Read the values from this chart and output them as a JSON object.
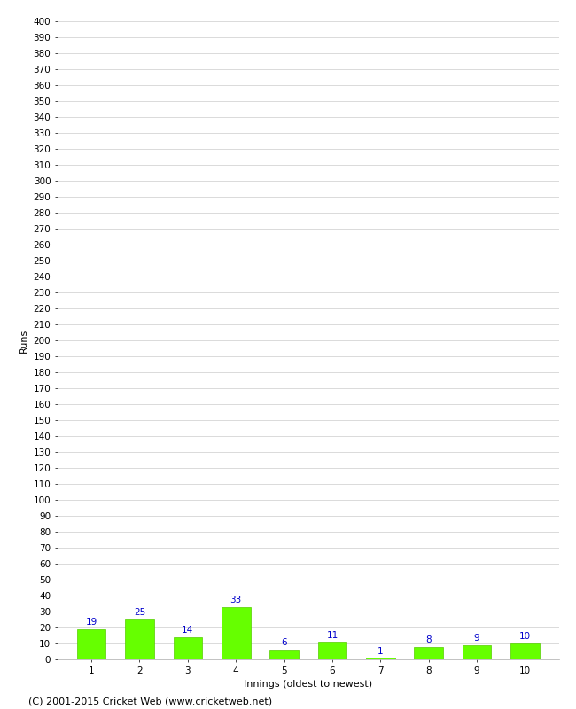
{
  "title": "",
  "xlabel": "Innings (oldest to newest)",
  "ylabel": "Runs",
  "categories": [
    "1",
    "2",
    "3",
    "4",
    "5",
    "6",
    "7",
    "8",
    "9",
    "10"
  ],
  "values": [
    19,
    25,
    14,
    33,
    6,
    11,
    1,
    8,
    9,
    10
  ],
  "bar_color": "#66ff00",
  "bar_edge_color": "#55cc00",
  "label_color": "#0000cc",
  "ylim": [
    0,
    400
  ],
  "grid_color": "#cccccc",
  "background_color": "#ffffff",
  "footer_text": "(C) 2001-2015 Cricket Web (www.cricketweb.net)",
  "axis_label_fontsize": 8,
  "tick_fontsize": 7.5,
  "bar_label_fontsize": 7.5,
  "footer_fontsize": 8
}
